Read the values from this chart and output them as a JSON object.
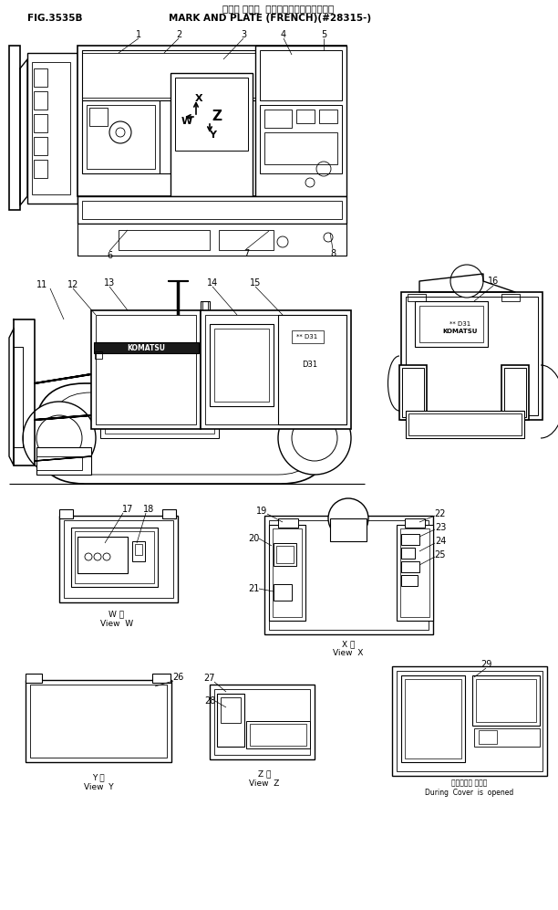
{
  "title_jp": "マーク オヨビ  プレート（フランスゴー）",
  "title_en": "MARK AND PLATE (FRENCH)(#28315-)",
  "fig_label": "FIG.3535B",
  "bg_color": "#ffffff",
  "lc": "#000000",
  "fig_width": 6.12,
  "fig_height": 9.97
}
